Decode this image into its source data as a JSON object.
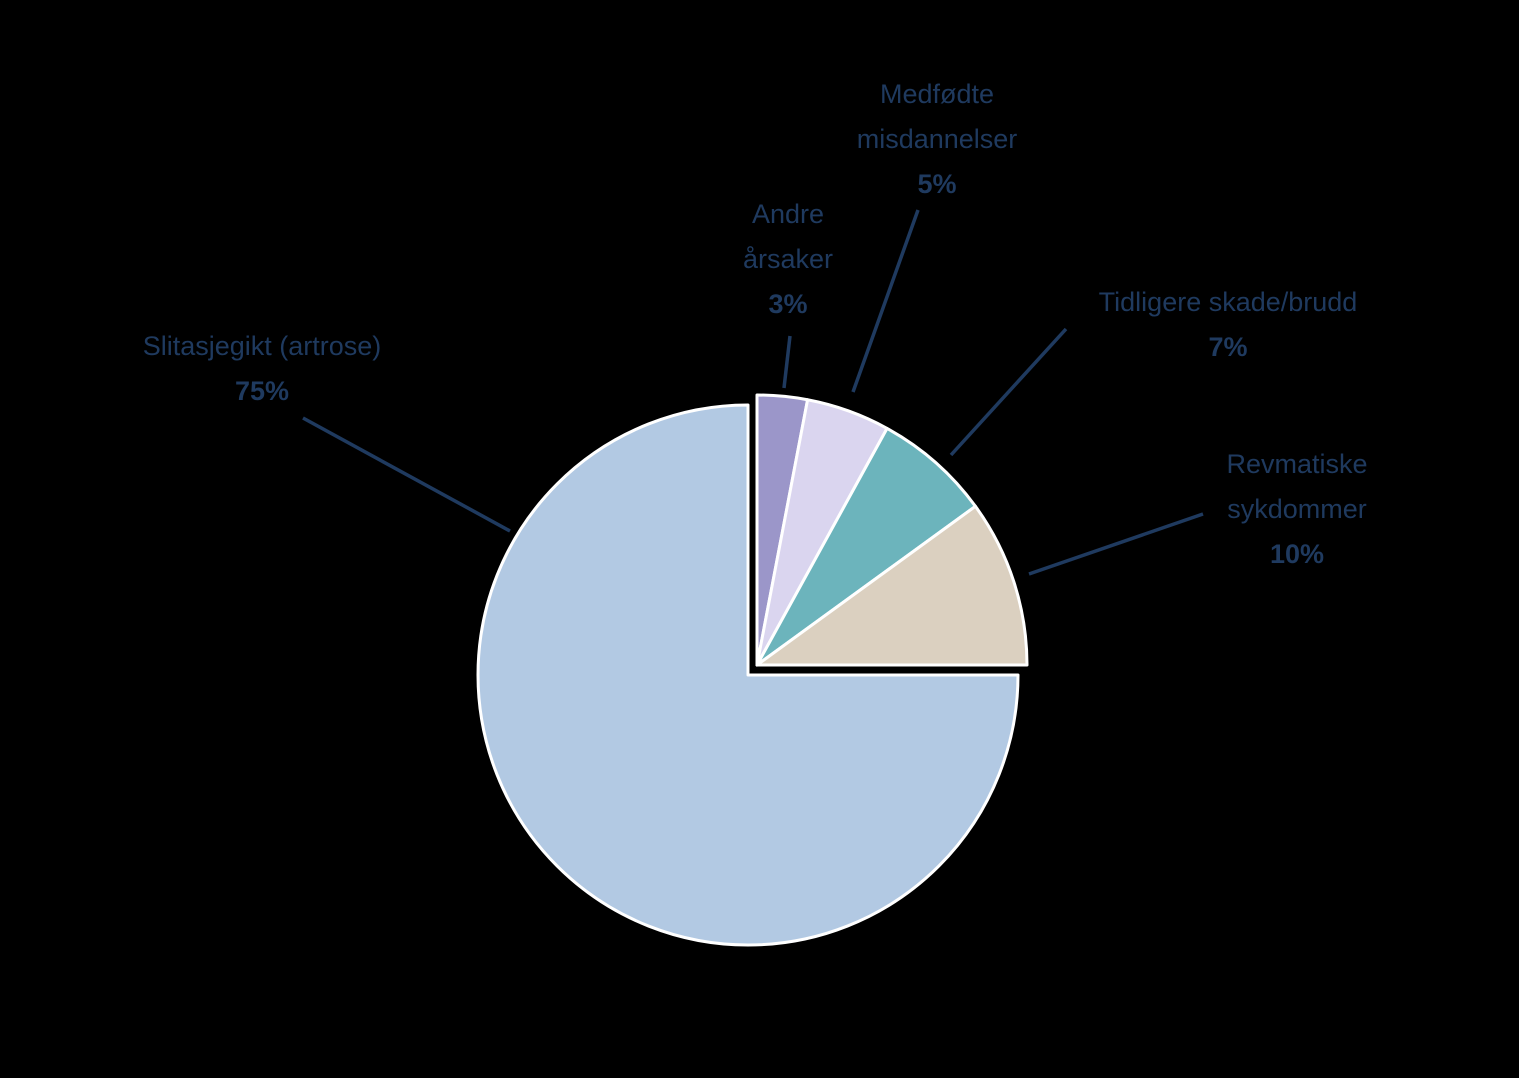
{
  "chart_data": {
    "type": "pie",
    "title": "",
    "background_color": "#000000",
    "label_color": "#1F3A5F",
    "leader_line_color": "#1F3A5F",
    "slice_border_color": "#FFFFFF",
    "start_position": "12-oclock",
    "direction": "clockwise",
    "slices": [
      {
        "label": "Andre årsaker",
        "value_pct": 3,
        "pct_label": "3%",
        "color": "#9B96C9",
        "exploded": false
      },
      {
        "label": "Medfødte misdannelser",
        "value_pct": 5,
        "pct_label": "5%",
        "color": "#DAD5EF",
        "exploded": false
      },
      {
        "label": "Tidligere skade/brudd",
        "value_pct": 7,
        "pct_label": "7%",
        "color": "#6CB4BC",
        "exploded": false
      },
      {
        "label": "Revmatiske sykdommer",
        "value_pct": 10,
        "pct_label": "10%",
        "color": "#DBD0C0",
        "exploded": false
      },
      {
        "label": "Slitasjegikt (artrose)",
        "value_pct": 75,
        "pct_label": "75%",
        "color": "#B2C9E3",
        "exploded": true
      }
    ]
  }
}
